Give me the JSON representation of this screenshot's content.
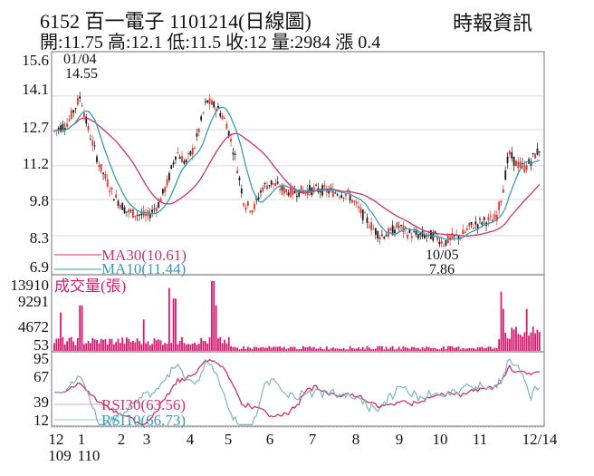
{
  "header": {
    "title": "6152  百一電子 1101214(日線圖)",
    "brand": "時報資訊",
    "ohlc": "開:11.75 高:12.1 低:11.5 收:12 量:2984 漲 0.4"
  },
  "colors": {
    "up": "#e0362c",
    "down": "#1a1a1a",
    "ma30": "#c8336b",
    "ma10": "#3a9ab8",
    "volume": "#d81b72",
    "rsi30": "#c8336b",
    "rsi10": "#7fb3c4",
    "grid": "#d9d9d9",
    "frame": "#8a8a8a"
  },
  "price_panel": {
    "y_ticks": [
      "15.6",
      "14.1",
      "12.7",
      "11.2",
      "9.8",
      "8.3",
      "6.9"
    ],
    "high_annotation": {
      "date": "01/04",
      "value": "14.55"
    },
    "low_annotation": {
      "date": "10/05",
      "value": "7.86"
    },
    "legend": {
      "ma30": "MA30(10.61)",
      "ma10": "MA10(11.44)"
    }
  },
  "volume_panel": {
    "title": "成交量(張)",
    "y_ticks": [
      "13910",
      "9291",
      "4672",
      "53"
    ]
  },
  "rsi_panel": {
    "y_ticks": [
      "95",
      "67",
      "39",
      "12"
    ],
    "legend": {
      "rsi30": "RSI30(63.56)",
      "rsi10": "RSI10(66.73)"
    }
  },
  "x_axis": {
    "months": [
      "12",
      "1",
      "2",
      "3",
      "4",
      "5",
      "6",
      "7",
      "8",
      "9",
      "10",
      "11",
      "12/14"
    ],
    "years": [
      "109",
      "110"
    ]
  },
  "chart_data": {
    "type": "candlestick",
    "title": "6152 百一電子 1101214(日線圖)",
    "subtitle": "開:11.75 高:12.1 低:11.5 收:12 量:2984 漲 0.4",
    "period": "daily, 2020/12 – 2021/12/14",
    "last_bar": {
      "open": 11.75,
      "high": 12.1,
      "low": 11.5,
      "close": 12,
      "volume": 2984,
      "change": 0.4
    },
    "price_axis": {
      "ticks": [
        15.6,
        14.1,
        12.7,
        11.2,
        9.8,
        8.3,
        6.9
      ],
      "ylim": [
        6.9,
        15.6
      ]
    },
    "annotations": [
      {
        "label": "01/04 14.55",
        "type": "high",
        "date": "01/04",
        "value": 14.55
      },
      {
        "label": "10/05 7.86",
        "type": "low",
        "date": "10/05",
        "value": 7.86
      }
    ],
    "monthly_close_approx": {
      "x": [
        "12",
        "1",
        "2",
        "3",
        "4",
        "5",
        "6",
        "7",
        "8",
        "9",
        "10",
        "11",
        "12/14"
      ],
      "values": [
        12.7,
        13.4,
        9.6,
        9.1,
        12.8,
        13.1,
        10.3,
        10.3,
        10.0,
        8.3,
        8.0,
        9.3,
        12.0
      ]
    },
    "series": [
      {
        "name": "MA30",
        "last": 10.61
      },
      {
        "name": "MA10",
        "last": 11.44
      },
      {
        "name": "成交量(張)",
        "axis": {
          "ticks": [
            13910,
            9291,
            4672,
            53
          ]
        },
        "last": 2984
      },
      {
        "name": "RSI30",
        "last": 63.56,
        "axis": {
          "ticks": [
            95,
            67,
            39,
            12
          ]
        }
      },
      {
        "name": "RSI10",
        "last": 66.73
      }
    ],
    "xlabel": "",
    "ylabel": "",
    "x_tick_labels": [
      "12",
      "1",
      "2",
      "3",
      "4",
      "5",
      "6",
      "7",
      "8",
      "9",
      "10",
      "11",
      "12/14"
    ],
    "x_year_labels": [
      "109",
      "110"
    ],
    "grid": true
  }
}
